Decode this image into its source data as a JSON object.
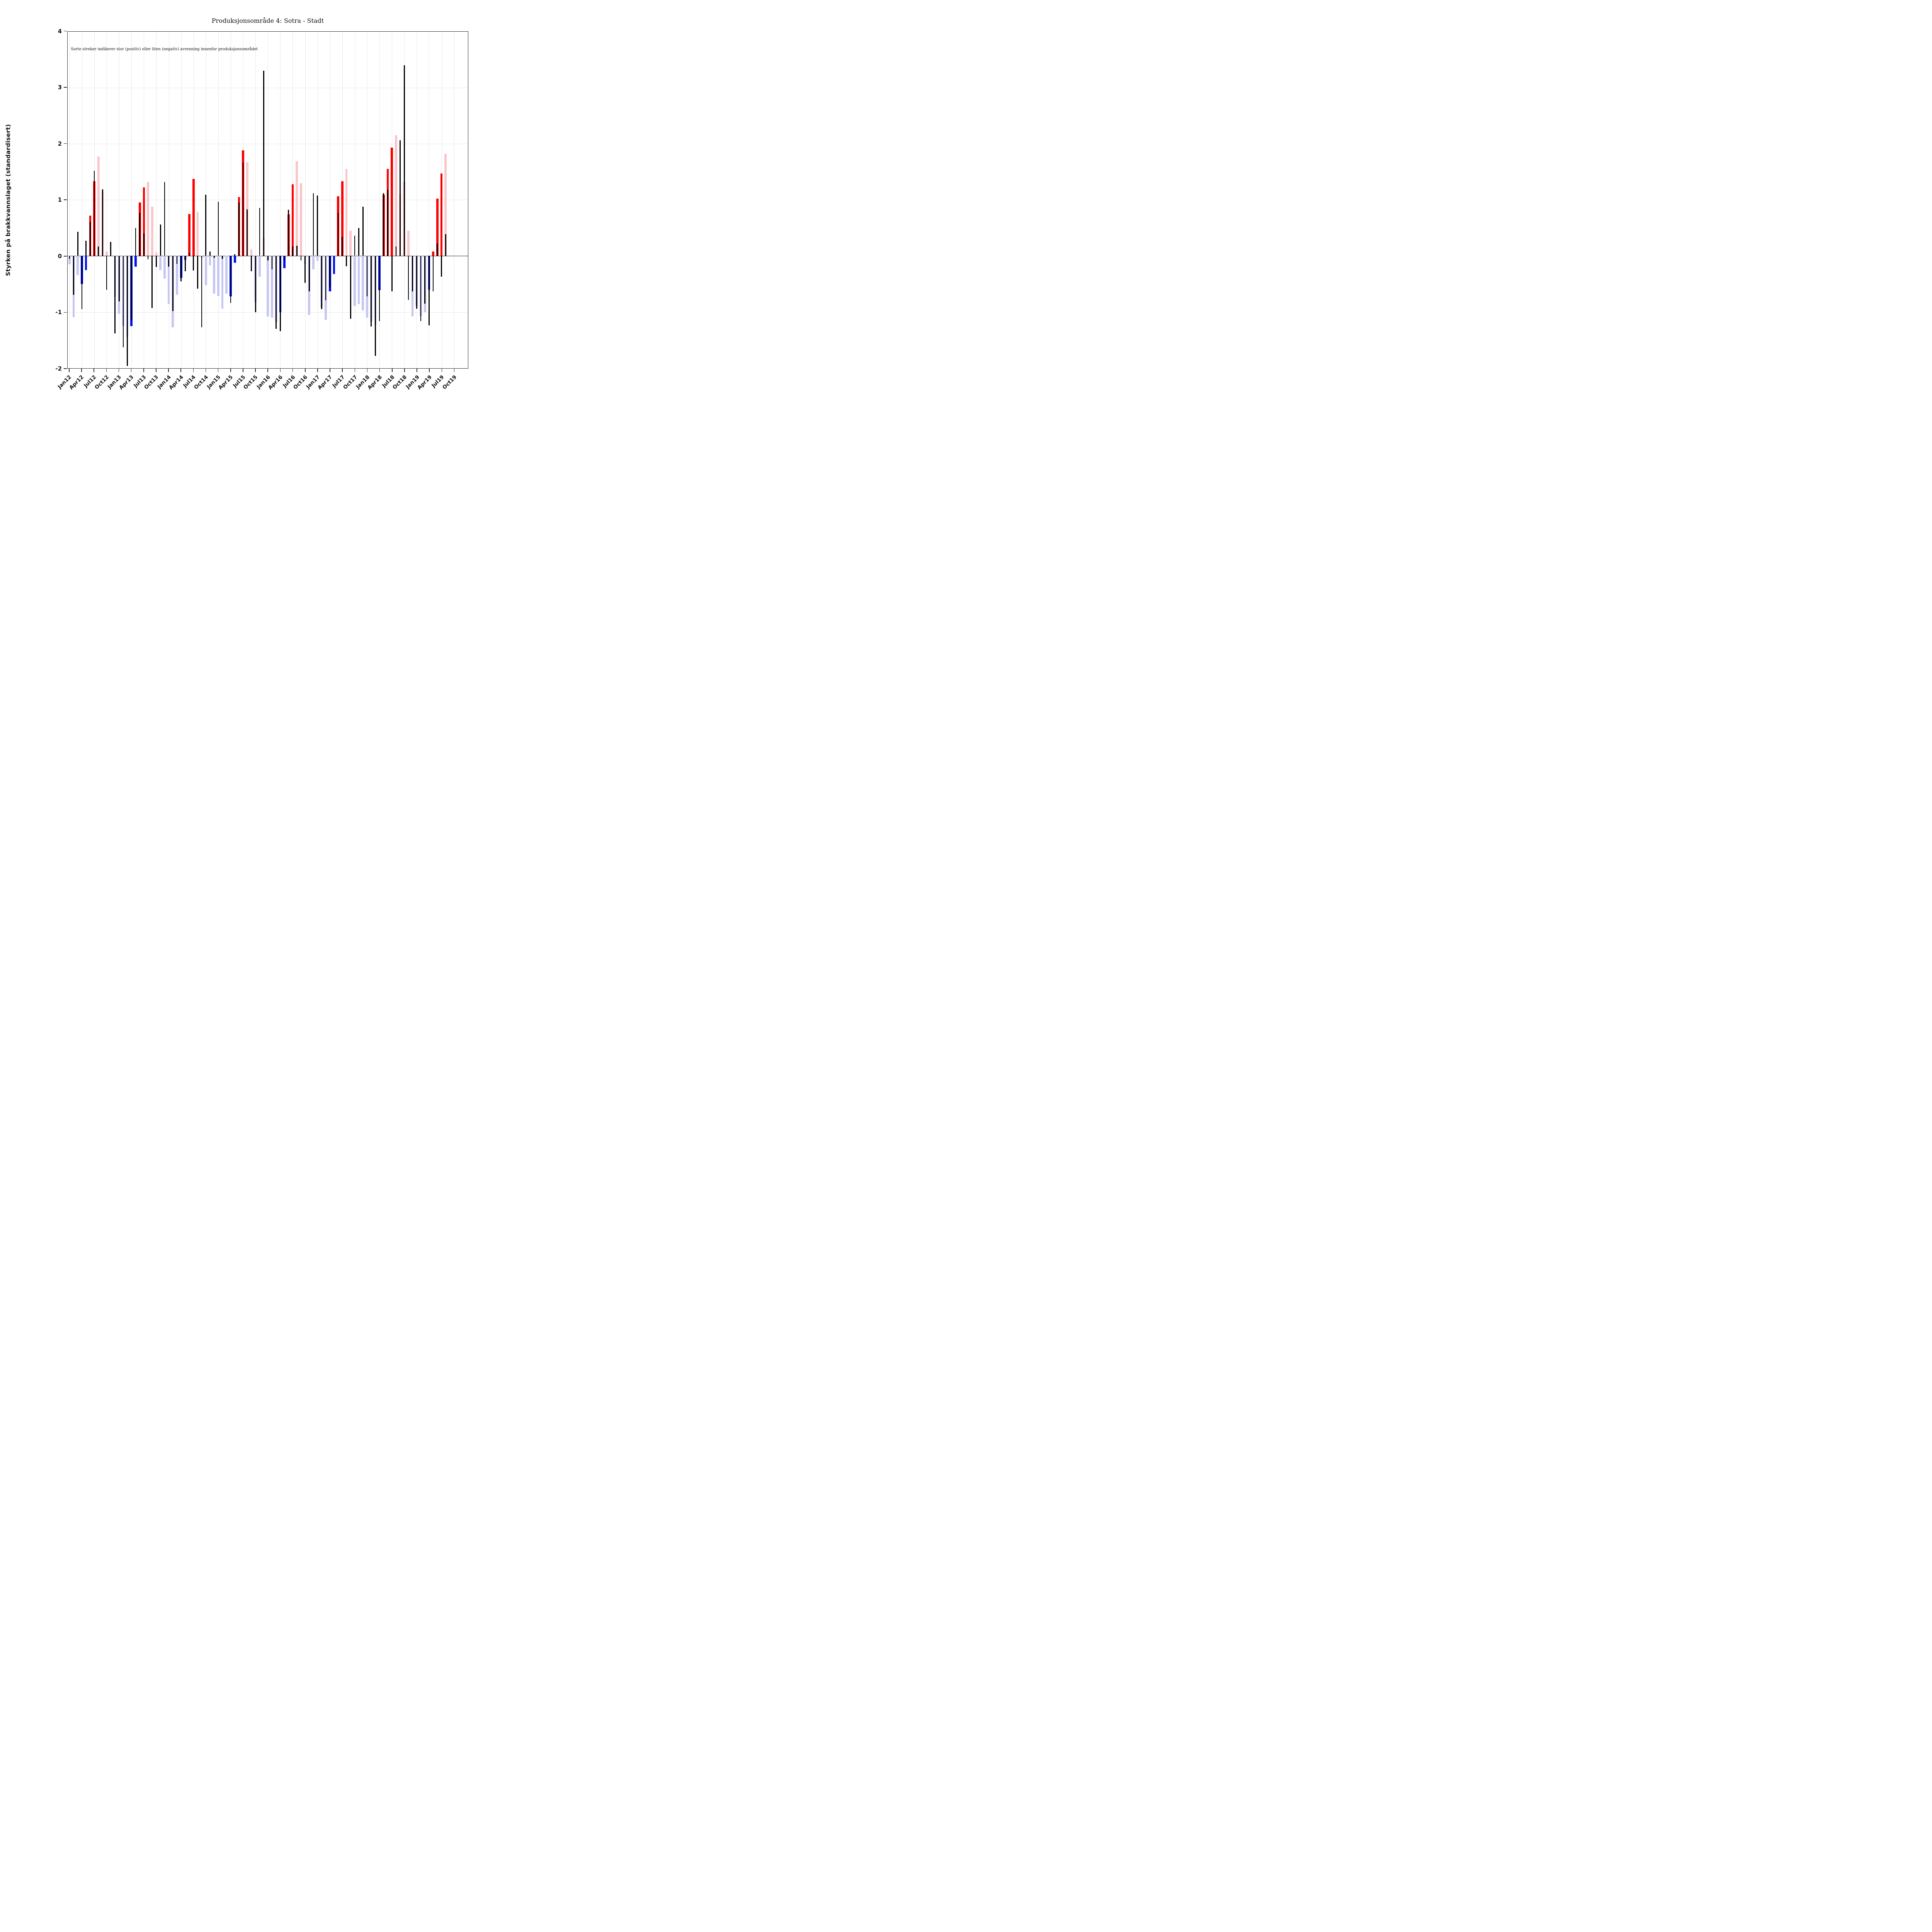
{
  "chart_data": {
    "type": "bar",
    "title": "Produksjonsområde 4: Sotra - Stadt",
    "annotation": "Sorte streker indikerer stor (positiv) eller liten (negativ) avrenning innenfor produksjonsområdet",
    "ylabel": "Styrken på brakkvannslaget (standardisert)",
    "ylim": [
      -2,
      4
    ],
    "yticks": [
      4,
      3,
      2,
      1,
      0,
      -1,
      -2
    ],
    "grid": "quarterly-vertical and integer-horizontal, light gray",
    "legend_position": "none",
    "n_month_slots": 96,
    "xtick_labels": [
      "Jan12",
      "Apr12",
      "Jul12",
      "Oct12",
      "Jan13",
      "Apr13",
      "Jul13",
      "Oct13",
      "Jan14",
      "Apr14",
      "Jul14",
      "Oct14",
      "Jan15",
      "Apr15",
      "Jul15",
      "Oct15",
      "Jan16",
      "Apr16",
      "Jul16",
      "Oct16",
      "Jan17",
      "Apr17",
      "Jul17",
      "Oct17",
      "Jan18",
      "Apr18",
      "Jul18",
      "Oct18",
      "Jan19",
      "Apr19",
      "Jul19",
      "Oct19"
    ],
    "colors": {
      "sp": "#fd0000",
      "wp": "#f9c6ca",
      "sn": "#0011ee",
      "wn": "#c7c7f3",
      "runoff_line": "#000000",
      "axis": "#262626",
      "gridline": "#e7e7e7"
    },
    "series_note": "bar = monthly standardized brackish-layer strength (sp strong red / wp pale pink positive, sn strong blue / wn pale blue negative); runoff = black line value",
    "months": [
      {
        "label": "Jan12",
        "bar": -0.15,
        "cat": "wn",
        "runoff": -0.05
      },
      {
        "label": "Feb12",
        "bar": -1.09,
        "cat": "wn",
        "runoff": -0.69
      },
      {
        "label": "Mar12",
        "bar": -0.34,
        "cat": "wn",
        "runoff": 0.43
      },
      {
        "label": "Apr12",
        "bar": -0.5,
        "cat": "sn",
        "runoff": -0.95
      },
      {
        "label": "May12",
        "bar": -0.25,
        "cat": "sn",
        "runoff": 0.27
      },
      {
        "label": "Jun12",
        "bar": 0.72,
        "cat": "sp",
        "runoff": 0.61
      },
      {
        "label": "Jul12",
        "bar": 1.33,
        "cat": "sp",
        "runoff": 1.52
      },
      {
        "label": "Aug12",
        "bar": 1.77,
        "cat": "wp",
        "runoff": 0.17
      },
      {
        "label": "Sep12",
        "bar": 1.15,
        "cat": "wp",
        "runoff": 1.19
      },
      {
        "label": "Oct12",
        "bar": 0.08,
        "cat": "wp",
        "runoff": -0.6
      },
      {
        "label": "Nov12",
        "bar": null,
        "cat": null,
        "runoff": 0.25
      },
      {
        "label": "Dec12",
        "bar": -0.73,
        "cat": "wn",
        "runoff": -1.38
      },
      {
        "label": "Jan13",
        "bar": -1.03,
        "cat": "wn",
        "runoff": -0.81
      },
      {
        "label": "Feb13",
        "bar": -1.25,
        "cat": "wn",
        "runoff": -1.63
      },
      {
        "label": "Mar13",
        "bar": -1.44,
        "cat": "wn",
        "runoff": -1.96
      },
      {
        "label": "Apr13",
        "bar": -1.25,
        "cat": "sn",
        "runoff": -1.15
      },
      {
        "label": "May13",
        "bar": -0.19,
        "cat": "sn",
        "runoff": 0.5
      },
      {
        "label": "Jun13",
        "bar": 0.95,
        "cat": "sp",
        "runoff": 0.77
      },
      {
        "label": "Jul13",
        "bar": 1.22,
        "cat": "sp",
        "runoff": 0.4
      },
      {
        "label": "Aug13",
        "bar": 1.32,
        "cat": "wp",
        "runoff": -0.06
      },
      {
        "label": "Sep13",
        "bar": 0.88,
        "cat": "wp",
        "runoff": -0.93
      },
      {
        "label": "Oct13",
        "bar": 0.07,
        "cat": "wp",
        "runoff": -0.2
      },
      {
        "label": "Nov13",
        "bar": -0.25,
        "cat": "wn",
        "runoff": 0.56
      },
      {
        "label": "Dec13",
        "bar": -0.4,
        "cat": "wn",
        "runoff": 1.32
      },
      {
        "label": "Jan14",
        "bar": -0.86,
        "cat": "wn",
        "runoff": -0.19
      },
      {
        "label": "Feb14",
        "bar": -1.27,
        "cat": "wn",
        "runoff": -0.98
      },
      {
        "label": "Mar14",
        "bar": -0.69,
        "cat": "wn",
        "runoff": -0.14
      },
      {
        "label": "Apr14",
        "bar": -0.39,
        "cat": "sn",
        "runoff": -0.45
      },
      {
        "label": "May14",
        "bar": -0.07,
        "cat": "sn",
        "runoff": -0.27
      },
      {
        "label": "Jun14",
        "bar": 0.75,
        "cat": "sp",
        "runoff": 0.06
      },
      {
        "label": "Jul14",
        "bar": 1.37,
        "cat": "sp",
        "runoff": -0.26
      },
      {
        "label": "Aug14",
        "bar": 0.78,
        "cat": "wp",
        "runoff": -0.58
      },
      {
        "label": "Sep14",
        "bar": -0.03,
        "cat": "wn",
        "runoff": -1.27
      },
      {
        "label": "Oct14",
        "bar": -0.52,
        "cat": "wn",
        "runoff": 1.09
      },
      {
        "label": "Nov14",
        "bar": -0.17,
        "cat": "wn",
        "runoff": 0.08
      },
      {
        "label": "Dec14",
        "bar": -0.67,
        "cat": "wn",
        "runoff": -0.03
      },
      {
        "label": "Jan15",
        "bar": -0.71,
        "cat": "wn",
        "runoff": 0.97
      },
      {
        "label": "Feb15",
        "bar": -0.94,
        "cat": "wn",
        "runoff": -0.05
      },
      {
        "label": "Mar15",
        "bar": -0.67,
        "cat": "wn",
        "runoff": null
      },
      {
        "label": "Apr15",
        "bar": -0.72,
        "cat": "sn",
        "runoff": -0.84
      },
      {
        "label": "May15",
        "bar": -0.12,
        "cat": "sn",
        "runoff": 0.03
      },
      {
        "label": "Jun15",
        "bar": 1.05,
        "cat": "sp",
        "runoff": 0.95
      },
      {
        "label": "Jul15",
        "bar": 1.88,
        "cat": "sp",
        "runoff": 1.66
      },
      {
        "label": "Aug15",
        "bar": 1.67,
        "cat": "wp",
        "runoff": 0.83
      },
      {
        "label": "Sep15",
        "bar": 0.12,
        "cat": "wp",
        "runoff": -0.27
      },
      {
        "label": "Oct15",
        "bar": -0.82,
        "cat": "wn",
        "runoff": -1.0
      },
      {
        "label": "Nov15",
        "bar": -0.37,
        "cat": "wn",
        "runoff": 0.86
      },
      {
        "label": "Dec15",
        "bar": 0.32,
        "cat": "wp",
        "runoff": 3.3
      },
      {
        "label": "Jan16",
        "bar": -1.08,
        "cat": "wn",
        "runoff": -0.08
      },
      {
        "label": "Feb16",
        "bar": -1.1,
        "cat": "wn",
        "runoff": -0.24
      },
      {
        "label": "Mar16",
        "bar": -1.18,
        "cat": "wn",
        "runoff": -1.3
      },
      {
        "label": "Apr16",
        "bar": -1.0,
        "cat": "sn",
        "runoff": -1.34
      },
      {
        "label": "May16",
        "bar": -0.22,
        "cat": "sn",
        "runoff": -0.07
      },
      {
        "label": "Jun16",
        "bar": 0.74,
        "cat": "sp",
        "runoff": 0.82
      },
      {
        "label": "Jul16",
        "bar": 1.28,
        "cat": "sp",
        "runoff": 0.17
      },
      {
        "label": "Aug16",
        "bar": 1.69,
        "cat": "wp",
        "runoff": 0.18
      },
      {
        "label": "Sep16",
        "bar": 1.3,
        "cat": "wp",
        "runoff": -0.08
      },
      {
        "label": "Oct16",
        "bar": -0.14,
        "cat": "wn",
        "runoff": -0.48
      },
      {
        "label": "Nov16",
        "bar": -1.05,
        "cat": "wn",
        "runoff": -0.63
      },
      {
        "label": "Dec16",
        "bar": -0.24,
        "cat": "wn",
        "runoff": 1.12
      },
      {
        "label": "Jan17",
        "bar": -0.09,
        "cat": "wn",
        "runoff": 1.08
      },
      {
        "label": "Feb17",
        "bar": -0.92,
        "cat": "wn",
        "runoff": -0.95
      },
      {
        "label": "Mar17",
        "bar": -1.14,
        "cat": "wn",
        "runoff": -0.79
      },
      {
        "label": "Apr17",
        "bar": -0.63,
        "cat": "sn",
        "runoff": -0.56
      },
      {
        "label": "May17",
        "bar": -0.32,
        "cat": "sn",
        "runoff": null
      },
      {
        "label": "Jun17",
        "bar": 1.06,
        "cat": "sp",
        "runoff": 0.77
      },
      {
        "label": "Jul17",
        "bar": 1.33,
        "cat": "sp",
        "runoff": 0.34
      },
      {
        "label": "Aug17",
        "bar": 1.55,
        "cat": "wp",
        "runoff": -0.18
      },
      {
        "label": "Sep17",
        "bar": 0.45,
        "cat": "wp",
        "runoff": -1.12
      },
      {
        "label": "Oct17",
        "bar": -0.89,
        "cat": "wn",
        "runoff": 0.36
      },
      {
        "label": "Nov17",
        "bar": -0.86,
        "cat": "wn",
        "runoff": 0.5
      },
      {
        "label": "Dec17",
        "bar": -0.97,
        "cat": "wn",
        "runoff": 0.88
      },
      {
        "label": "Jan18",
        "bar": -1.1,
        "cat": "wn",
        "runoff": -0.72
      },
      {
        "label": "Feb18",
        "bar": -1.17,
        "cat": "wn",
        "runoff": -1.26
      },
      {
        "label": "Mar18",
        "bar": -1.22,
        "cat": "wn",
        "runoff": -1.78
      },
      {
        "label": "Apr18",
        "bar": -0.61,
        "cat": "sn",
        "runoff": -1.16
      },
      {
        "label": "May18",
        "bar": 1.09,
        "cat": "sp",
        "runoff": 1.12
      },
      {
        "label": "Jun18",
        "bar": 1.55,
        "cat": "sp",
        "runoff": 1.18
      },
      {
        "label": "Jul18",
        "bar": 1.93,
        "cat": "sp",
        "runoff": -0.63
      },
      {
        "label": "Aug18",
        "bar": 2.15,
        "cat": "wp",
        "runoff": 0.17
      },
      {
        "label": "Sep18",
        "bar": 1.1,
        "cat": "wp",
        "runoff": 2.06
      },
      {
        "label": "Oct18",
        "bar": 1.32,
        "cat": "wp",
        "runoff": 3.4
      },
      {
        "label": "Nov18",
        "bar": 0.45,
        "cat": "wp",
        "runoff": -0.78
      },
      {
        "label": "Dec18",
        "bar": -1.08,
        "cat": "wn",
        "runoff": -0.63
      },
      {
        "label": "Jan19",
        "bar": -0.89,
        "cat": "wn",
        "runoff": -0.94
      },
      {
        "label": "Feb19",
        "bar": -1.07,
        "cat": "wn",
        "runoff": -1.16
      },
      {
        "label": "Mar19",
        "bar": -1.0,
        "cat": "wn",
        "runoff": -0.85
      },
      {
        "label": "Apr19",
        "bar": -0.6,
        "cat": "sn",
        "runoff": -1.24
      },
      {
        "label": "May19",
        "bar": 0.08,
        "cat": "sp",
        "runoff": -0.63
      },
      {
        "label": "Jun19",
        "bar": 1.02,
        "cat": "sp",
        "runoff": 0.22
      },
      {
        "label": "Jul19",
        "bar": 1.47,
        "cat": "sp",
        "runoff": -0.37
      },
      {
        "label": "Aug19",
        "bar": 1.82,
        "cat": "wp",
        "runoff": 0.39
      }
    ]
  }
}
